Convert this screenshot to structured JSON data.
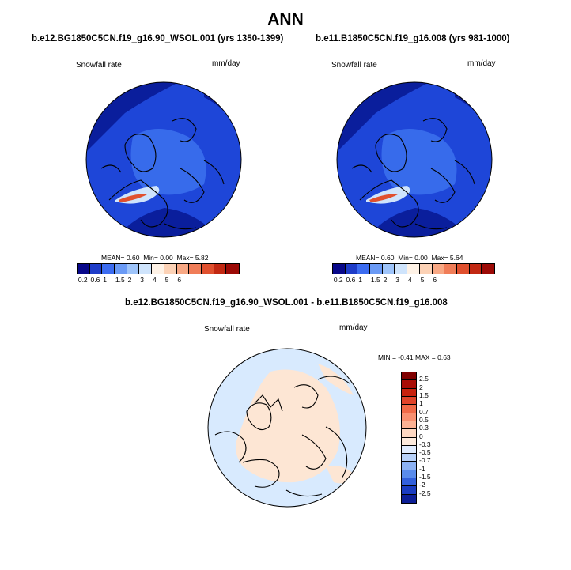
{
  "title": "ANN",
  "panels": [
    {
      "title": "b.e12.BG1850C5CN.f19_g16.90_WSOL.001 (yrs 1350-1399)",
      "variable": "Snowfall rate",
      "units": "mm/day",
      "stats": {
        "mean_label": "MEAN=",
        "mean": "0.60",
        "min_label": "Min=",
        "min": "0.00",
        "max_label": "Max=",
        "max": "5.82"
      }
    },
    {
      "title": "b.e11.B1850C5CN.f19_g16.008 (yrs 981-1000)",
      "variable": "Snowfall rate",
      "units": "mm/day",
      "stats": {
        "mean_label": "MEAN=",
        "mean": "0.60",
        "min_label": "Min=",
        "min": "0.00",
        "max_label": "Max=",
        "max": "5.64"
      }
    }
  ],
  "diff_panel": {
    "title": "b.e12.BG1850C5CN.f19_g16.90_WSOL.001 - b.e11.B1850C5CN.f19_g16.008",
    "variable": "Snowfall rate",
    "units": "mm/day",
    "minmax": "MIN =  -0.41 MAX =   0.63"
  },
  "colorbar_abs": {
    "ticks": [
      "0.2",
      "0.6",
      "1",
      "1.5",
      "2",
      "3",
      "4",
      "5",
      "6"
    ],
    "colors": [
      "#08088a",
      "#1e3cc8",
      "#3c6cf0",
      "#6a9af5",
      "#9ec4fa",
      "#cfe4fc",
      "#fef2e6",
      "#fcd2b6",
      "#f8a884",
      "#f07d58",
      "#e0502e",
      "#c22812",
      "#9c0a06"
    ]
  },
  "colorbar_diff": {
    "ticks": [
      "2.5",
      "2",
      "1.5",
      "1",
      "0.7",
      "0.5",
      "0.3",
      "0",
      "-0.3",
      "-0.5",
      "-0.7",
      "-1",
      "-1.5",
      "-2",
      "-2.5"
    ],
    "colors": [
      "#800000",
      "#a80c06",
      "#c8220e",
      "#e0442a",
      "#f06a48",
      "#f89070",
      "#fcb294",
      "#fed8c2",
      "#fdeadc",
      "#e0ecfe",
      "#b8d2fa",
      "#8cb2f4",
      "#5a8cec",
      "#3260dc",
      "#1a3cc0",
      "#0c1e96"
    ]
  },
  "colors": {
    "land_diff": "#fde6d4",
    "ocean_diff": "#d8eafe",
    "map_base": "#1e46d8",
    "map_deep": "#0a1e9c",
    "map_light": "#3c72ee"
  }
}
